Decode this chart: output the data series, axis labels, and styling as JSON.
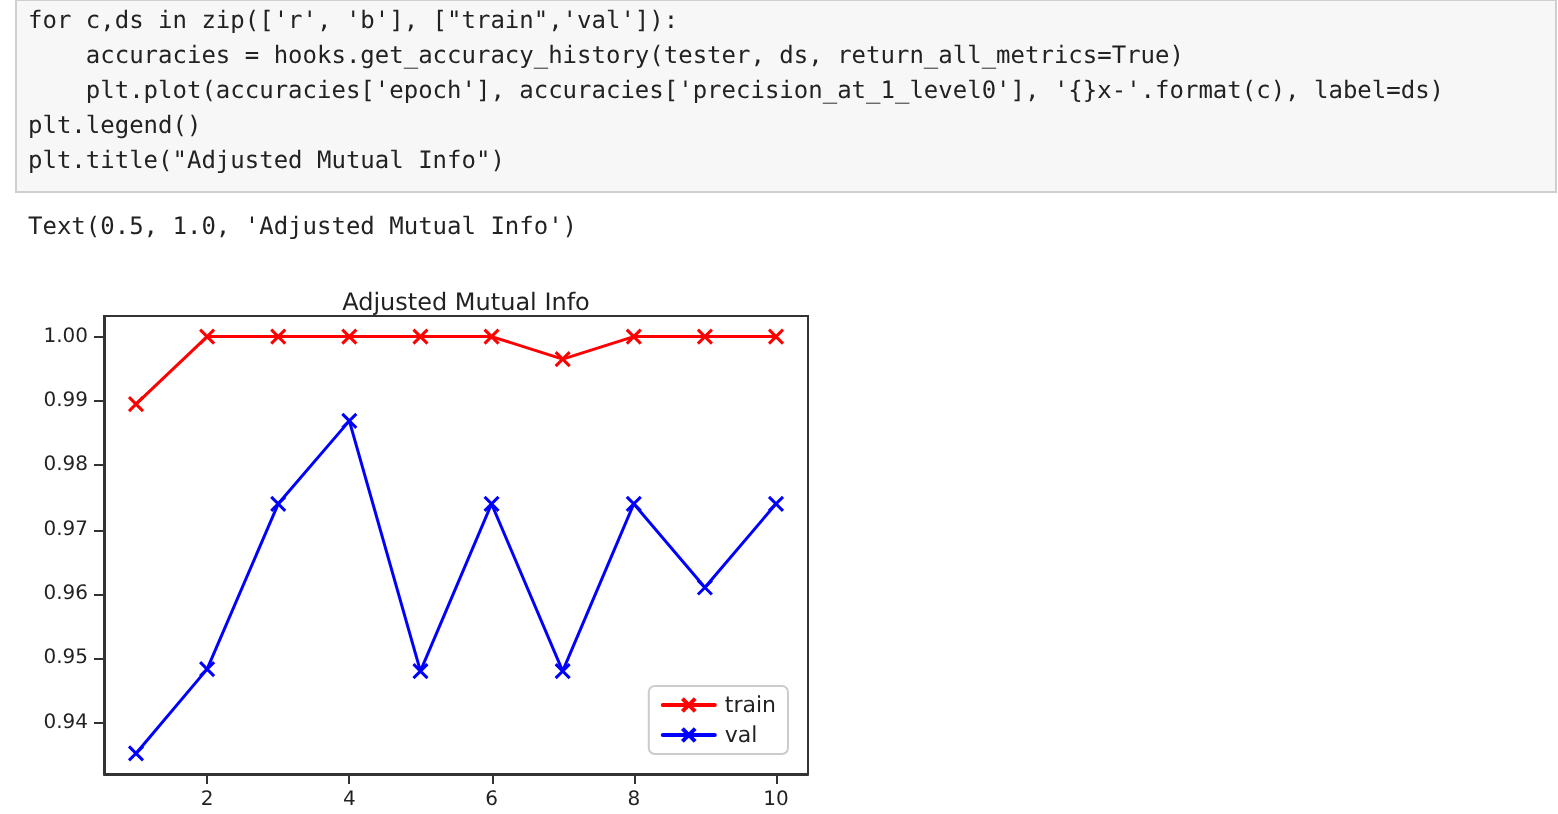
{
  "chart_data": {
    "type": "line",
    "title": "Adjusted Mutual Info",
    "annotations": [
      "for c,ds in zip(['r', 'b'], [\"train\",'val']):",
      "    accuracies = hooks.get_accuracy_history(tester, ds, return_all_metrics=True)",
      "    plt.plot(accuracies['epoch'], accuracies['precision_at_1_level0'], '{}x-'.format(c), label=ds)",
      "plt.legend()",
      "plt.title(\"Adjusted Mutual Info\")",
      "Text(0.5, 1.0, 'Adjusted Mutual Info')"
    ],
    "x": [
      1,
      2,
      3,
      4,
      5,
      6,
      7,
      8,
      9,
      10
    ],
    "series": [
      {
        "name": "train",
        "color": "#ff0000",
        "values": [
          0.9895,
          1.0,
          1.0,
          1.0,
          1.0,
          1.0,
          0.9965,
          1.0,
          1.0,
          1.0
        ]
      },
      {
        "name": "val",
        "color": "#0000ff",
        "values": [
          0.9352,
          0.9483,
          0.974,
          0.9869,
          0.948,
          0.974,
          0.948,
          0.974,
          0.961,
          0.974
        ]
      }
    ],
    "xlim": [
      0.55,
      10.45
    ],
    "xticks": [
      2,
      4,
      6,
      8,
      10
    ],
    "ylim": [
      0.932,
      1.0032
    ],
    "yticks": [
      0.94,
      0.95,
      0.96,
      0.97,
      0.98,
      0.99,
      {
        "value": 1.0,
        "label": "1.00"
      }
    ],
    "grid": false,
    "legend": "bottom right",
    "marker": "cross",
    "line_style": "solid"
  }
}
